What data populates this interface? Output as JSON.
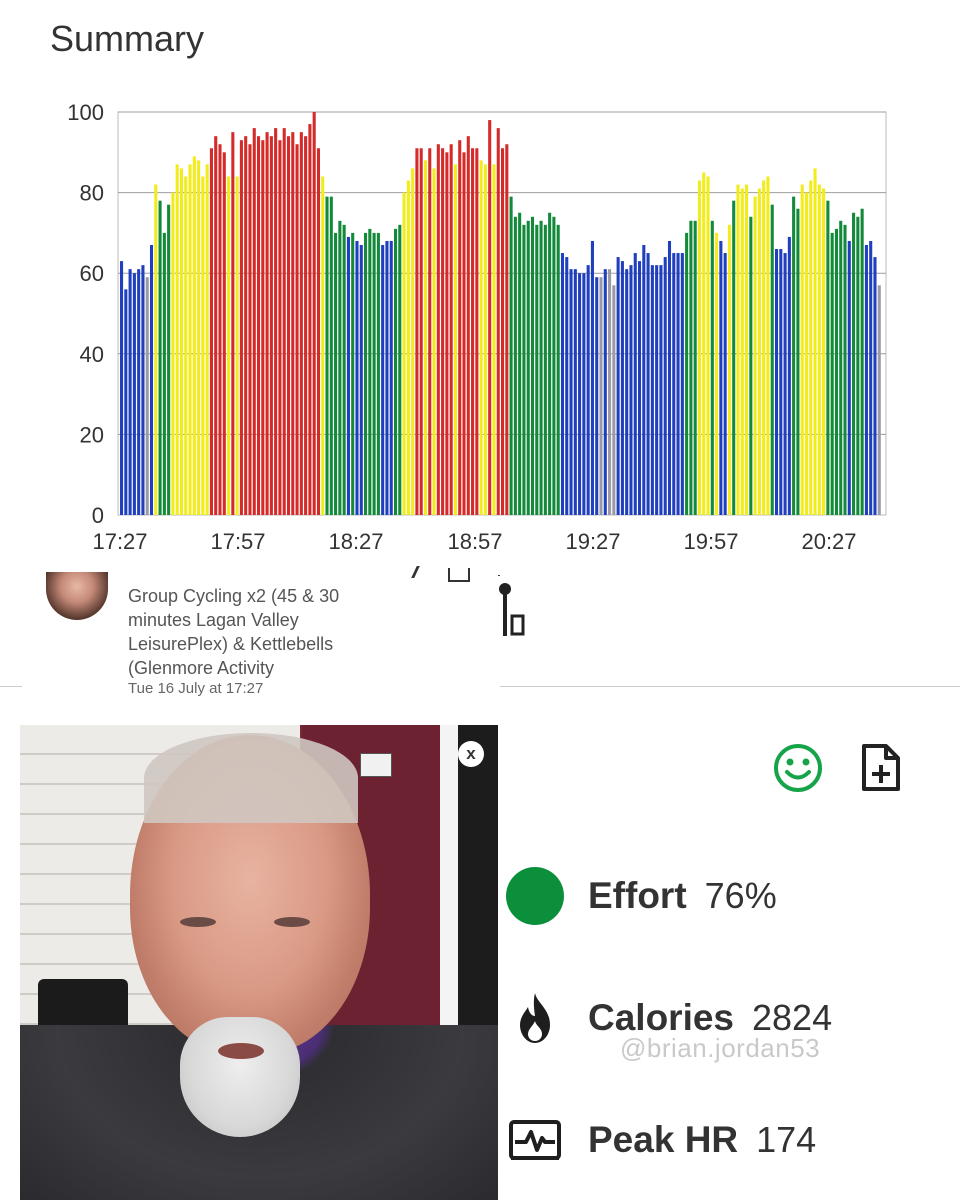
{
  "summary": {
    "title": "Summary"
  },
  "chart_data": {
    "type": "bar",
    "ylim": [
      0,
      100
    ],
    "yticks": [
      "0",
      "20",
      "40",
      "60",
      "80",
      "100"
    ],
    "xticks": [
      "17:27",
      "17:57",
      "18:27",
      "18:57",
      "19:27",
      "19:57",
      "20:27"
    ],
    "grid": true,
    "colors": {
      "blue": "#1f3fbf",
      "green": "#138a3a",
      "yellow": "#f2ec1a",
      "red": "#d42a2a",
      "gray": "#9a9aa6"
    },
    "bars": [
      {
        "v": 63,
        "c": "blue"
      },
      {
        "v": 56,
        "c": "blue"
      },
      {
        "v": 61,
        "c": "blue"
      },
      {
        "v": 60,
        "c": "blue"
      },
      {
        "v": 61,
        "c": "blue"
      },
      {
        "v": 62,
        "c": "blue"
      },
      {
        "v": 59,
        "c": "gray"
      },
      {
        "v": 67,
        "c": "blue"
      },
      {
        "v": 82,
        "c": "yellow"
      },
      {
        "v": 78,
        "c": "green"
      },
      {
        "v": 70,
        "c": "green"
      },
      {
        "v": 77,
        "c": "green"
      },
      {
        "v": 80,
        "c": "yellow"
      },
      {
        "v": 87,
        "c": "yellow"
      },
      {
        "v": 86,
        "c": "yellow"
      },
      {
        "v": 84,
        "c": "yellow"
      },
      {
        "v": 87,
        "c": "yellow"
      },
      {
        "v": 89,
        "c": "yellow"
      },
      {
        "v": 88,
        "c": "yellow"
      },
      {
        "v": 84,
        "c": "yellow"
      },
      {
        "v": 87,
        "c": "yellow"
      },
      {
        "v": 91,
        "c": "red"
      },
      {
        "v": 94,
        "c": "red"
      },
      {
        "v": 92,
        "c": "red"
      },
      {
        "v": 90,
        "c": "red"
      },
      {
        "v": 84,
        "c": "yellow"
      },
      {
        "v": 95,
        "c": "red"
      },
      {
        "v": 84,
        "c": "yellow"
      },
      {
        "v": 93,
        "c": "red"
      },
      {
        "v": 94,
        "c": "red"
      },
      {
        "v": 92,
        "c": "red"
      },
      {
        "v": 96,
        "c": "red"
      },
      {
        "v": 94,
        "c": "red"
      },
      {
        "v": 93,
        "c": "red"
      },
      {
        "v": 95,
        "c": "red"
      },
      {
        "v": 94,
        "c": "red"
      },
      {
        "v": 96,
        "c": "red"
      },
      {
        "v": 93,
        "c": "red"
      },
      {
        "v": 96,
        "c": "red"
      },
      {
        "v": 94,
        "c": "red"
      },
      {
        "v": 95,
        "c": "red"
      },
      {
        "v": 92,
        "c": "red"
      },
      {
        "v": 95,
        "c": "red"
      },
      {
        "v": 94,
        "c": "red"
      },
      {
        "v": 97,
        "c": "red"
      },
      {
        "v": 100,
        "c": "red"
      },
      {
        "v": 91,
        "c": "red"
      },
      {
        "v": 84,
        "c": "yellow"
      },
      {
        "v": 79,
        "c": "green"
      },
      {
        "v": 79,
        "c": "green"
      },
      {
        "v": 70,
        "c": "green"
      },
      {
        "v": 73,
        "c": "green"
      },
      {
        "v": 72,
        "c": "green"
      },
      {
        "v": 69,
        "c": "blue"
      },
      {
        "v": 70,
        "c": "green"
      },
      {
        "v": 68,
        "c": "blue"
      },
      {
        "v": 67,
        "c": "blue"
      },
      {
        "v": 70,
        "c": "green"
      },
      {
        "v": 71,
        "c": "green"
      },
      {
        "v": 70,
        "c": "green"
      },
      {
        "v": 70,
        "c": "green"
      },
      {
        "v": 67,
        "c": "blue"
      },
      {
        "v": 68,
        "c": "blue"
      },
      {
        "v": 68,
        "c": "blue"
      },
      {
        "v": 71,
        "c": "green"
      },
      {
        "v": 72,
        "c": "green"
      },
      {
        "v": 80,
        "c": "yellow"
      },
      {
        "v": 83,
        "c": "yellow"
      },
      {
        "v": 86,
        "c": "yellow"
      },
      {
        "v": 91,
        "c": "red"
      },
      {
        "v": 91,
        "c": "red"
      },
      {
        "v": 88,
        "c": "yellow"
      },
      {
        "v": 91,
        "c": "red"
      },
      {
        "v": 86,
        "c": "yellow"
      },
      {
        "v": 92,
        "c": "red"
      },
      {
        "v": 91,
        "c": "red"
      },
      {
        "v": 90,
        "c": "red"
      },
      {
        "v": 92,
        "c": "red"
      },
      {
        "v": 87,
        "c": "yellow"
      },
      {
        "v": 93,
        "c": "red"
      },
      {
        "v": 90,
        "c": "red"
      },
      {
        "v": 94,
        "c": "red"
      },
      {
        "v": 91,
        "c": "red"
      },
      {
        "v": 91,
        "c": "red"
      },
      {
        "v": 88,
        "c": "yellow"
      },
      {
        "v": 87,
        "c": "yellow"
      },
      {
        "v": 98,
        "c": "red"
      },
      {
        "v": 87,
        "c": "yellow"
      },
      {
        "v": 96,
        "c": "red"
      },
      {
        "v": 91,
        "c": "red"
      },
      {
        "v": 92,
        "c": "red"
      },
      {
        "v": 79,
        "c": "green"
      },
      {
        "v": 74,
        "c": "green"
      },
      {
        "v": 75,
        "c": "green"
      },
      {
        "v": 72,
        "c": "green"
      },
      {
        "v": 73,
        "c": "green"
      },
      {
        "v": 74,
        "c": "green"
      },
      {
        "v": 72,
        "c": "green"
      },
      {
        "v": 73,
        "c": "green"
      },
      {
        "v": 72,
        "c": "green"
      },
      {
        "v": 75,
        "c": "green"
      },
      {
        "v": 74,
        "c": "green"
      },
      {
        "v": 72,
        "c": "green"
      },
      {
        "v": 65,
        "c": "blue"
      },
      {
        "v": 64,
        "c": "blue"
      },
      {
        "v": 61,
        "c": "blue"
      },
      {
        "v": 61,
        "c": "blue"
      },
      {
        "v": 60,
        "c": "blue"
      },
      {
        "v": 60,
        "c": "blue"
      },
      {
        "v": 62,
        "c": "blue"
      },
      {
        "v": 68,
        "c": "blue"
      },
      {
        "v": 59,
        "c": "blue"
      },
      {
        "v": 59,
        "c": "gray"
      },
      {
        "v": 61,
        "c": "blue"
      },
      {
        "v": 61,
        "c": "gray"
      },
      {
        "v": 57,
        "c": "gray"
      },
      {
        "v": 64,
        "c": "blue"
      },
      {
        "v": 63,
        "c": "blue"
      },
      {
        "v": 61,
        "c": "blue"
      },
      {
        "v": 62,
        "c": "blue"
      },
      {
        "v": 65,
        "c": "blue"
      },
      {
        "v": 63,
        "c": "blue"
      },
      {
        "v": 67,
        "c": "blue"
      },
      {
        "v": 65,
        "c": "blue"
      },
      {
        "v": 62,
        "c": "blue"
      },
      {
        "v": 62,
        "c": "blue"
      },
      {
        "v": 62,
        "c": "blue"
      },
      {
        "v": 64,
        "c": "blue"
      },
      {
        "v": 68,
        "c": "blue"
      },
      {
        "v": 65,
        "c": "blue"
      },
      {
        "v": 65,
        "c": "blue"
      },
      {
        "v": 65,
        "c": "blue"
      },
      {
        "v": 70,
        "c": "green"
      },
      {
        "v": 73,
        "c": "green"
      },
      {
        "v": 73,
        "c": "green"
      },
      {
        "v": 83,
        "c": "yellow"
      },
      {
        "v": 85,
        "c": "yellow"
      },
      {
        "v": 84,
        "c": "yellow"
      },
      {
        "v": 73,
        "c": "green"
      },
      {
        "v": 70,
        "c": "yellow"
      },
      {
        "v": 68,
        "c": "blue"
      },
      {
        "v": 65,
        "c": "blue"
      },
      {
        "v": 72,
        "c": "yellow"
      },
      {
        "v": 78,
        "c": "green"
      },
      {
        "v": 82,
        "c": "yellow"
      },
      {
        "v": 81,
        "c": "yellow"
      },
      {
        "v": 82,
        "c": "yellow"
      },
      {
        "v": 74,
        "c": "green"
      },
      {
        "v": 79,
        "c": "yellow"
      },
      {
        "v": 81,
        "c": "yellow"
      },
      {
        "v": 83,
        "c": "yellow"
      },
      {
        "v": 84,
        "c": "yellow"
      },
      {
        "v": 77,
        "c": "green"
      },
      {
        "v": 66,
        "c": "blue"
      },
      {
        "v": 66,
        "c": "blue"
      },
      {
        "v": 65,
        "c": "blue"
      },
      {
        "v": 69,
        "c": "blue"
      },
      {
        "v": 79,
        "c": "green"
      },
      {
        "v": 76,
        "c": "green"
      },
      {
        "v": 82,
        "c": "yellow"
      },
      {
        "v": 80,
        "c": "yellow"
      },
      {
        "v": 83,
        "c": "yellow"
      },
      {
        "v": 86,
        "c": "yellow"
      },
      {
        "v": 82,
        "c": "yellow"
      },
      {
        "v": 81,
        "c": "yellow"
      },
      {
        "v": 78,
        "c": "green"
      },
      {
        "v": 70,
        "c": "green"
      },
      {
        "v": 71,
        "c": "green"
      },
      {
        "v": 73,
        "c": "green"
      },
      {
        "v": 72,
        "c": "green"
      },
      {
        "v": 68,
        "c": "blue"
      },
      {
        "v": 75,
        "c": "green"
      },
      {
        "v": 74,
        "c": "green"
      },
      {
        "v": 76,
        "c": "green"
      },
      {
        "v": 67,
        "c": "blue"
      },
      {
        "v": 68,
        "c": "blue"
      },
      {
        "v": 64,
        "c": "blue"
      },
      {
        "v": 57,
        "c": "gray"
      }
    ]
  },
  "post": {
    "text": "Group Cycling x2 (45 & 30 minutes Lagan Valley LeisurePlex) & Kettlebells (Glenmore Activity",
    "date": "Tue 16 July at 17:27"
  },
  "photo": {
    "close_label": "x"
  },
  "icons": {
    "smiley": "smiley-icon",
    "add_document": "add-document-icon",
    "flame": "flame-icon",
    "heart_rate": "heart-rate-icon"
  },
  "stats": {
    "effort": {
      "label": "Effort",
      "value": "76%",
      "color": "#0b8f3a"
    },
    "calories": {
      "label": "Calories",
      "value": "2824"
    },
    "peak_hr": {
      "label": "Peak HR",
      "value": "174"
    }
  },
  "watermark": "@brian.jordan53"
}
